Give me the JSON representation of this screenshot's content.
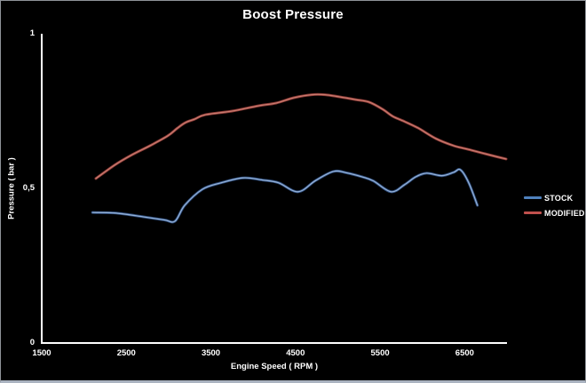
{
  "window": {
    "background": "#000000",
    "frame_border": "#8f9399",
    "bottom_strip": "#aab3c0",
    "text_color": "#ffffff"
  },
  "chart_data": {
    "type": "line",
    "title": "Boost Pressure",
    "xlabel": "Engine Speed ( RPM )",
    "ylabel": "Pressure ( bar )",
    "xlim": [
      1500,
      7000
    ],
    "ylim": [
      0,
      1
    ],
    "grid": false,
    "background": "#000000",
    "axis_color": "#ffffff",
    "legend_position": "right",
    "x_ticks": [
      {
        "value": 1500,
        "label": "1500"
      },
      {
        "value": 2500,
        "label": "2500"
      },
      {
        "value": 3500,
        "label": "3500"
      },
      {
        "value": 4500,
        "label": "4500"
      },
      {
        "value": 5500,
        "label": "5500"
      },
      {
        "value": 6500,
        "label": "6500"
      }
    ],
    "y_ticks": [
      {
        "value": 1,
        "label": "1"
      },
      {
        "value": 0.5,
        "label": "0,5"
      },
      {
        "value": 0,
        "label": "0"
      }
    ],
    "series": [
      {
        "name": "STOCK",
        "color": "#4F81BD",
        "color_outer": "#2e4d7d",
        "color_inner": "#93b0d6",
        "points": [
          [
            2100,
            0.422
          ],
          [
            2380,
            0.42
          ],
          [
            2700,
            0.408
          ],
          [
            2950,
            0.398
          ],
          [
            3075,
            0.394
          ],
          [
            3190,
            0.445
          ],
          [
            3400,
            0.497
          ],
          [
            3620,
            0.518
          ],
          [
            3880,
            0.534
          ],
          [
            4110,
            0.527
          ],
          [
            4300,
            0.518
          ],
          [
            4530,
            0.489
          ],
          [
            4740,
            0.526
          ],
          [
            4950,
            0.555
          ],
          [
            5110,
            0.55
          ],
          [
            5290,
            0.537
          ],
          [
            5420,
            0.524
          ],
          [
            5630,
            0.489
          ],
          [
            5790,
            0.512
          ],
          [
            5920,
            0.537
          ],
          [
            6050,
            0.549
          ],
          [
            6230,
            0.541
          ],
          [
            6370,
            0.552
          ],
          [
            6450,
            0.56
          ],
          [
            6550,
            0.517
          ],
          [
            6650,
            0.445
          ]
        ]
      },
      {
        "name": "MODIFIED",
        "color": "#C0504D",
        "color_outer": "#8c3a36",
        "color_inner": "#c97b6f",
        "points": [
          [
            2140,
            0.532
          ],
          [
            2360,
            0.575
          ],
          [
            2570,
            0.609
          ],
          [
            2780,
            0.638
          ],
          [
            2990,
            0.67
          ],
          [
            3100,
            0.694
          ],
          [
            3200,
            0.713
          ],
          [
            3310,
            0.724
          ],
          [
            3430,
            0.738
          ],
          [
            3750,
            0.75
          ],
          [
            4060,
            0.767
          ],
          [
            4270,
            0.776
          ],
          [
            4480,
            0.793
          ],
          [
            4690,
            0.803
          ],
          [
            4850,
            0.803
          ],
          [
            5020,
            0.796
          ],
          [
            5210,
            0.787
          ],
          [
            5370,
            0.779
          ],
          [
            5530,
            0.756
          ],
          [
            5650,
            0.733
          ],
          [
            5790,
            0.716
          ],
          [
            5950,
            0.695
          ],
          [
            6160,
            0.661
          ],
          [
            6370,
            0.638
          ],
          [
            6530,
            0.627
          ],
          [
            6740,
            0.612
          ],
          [
            6990,
            0.595
          ]
        ]
      }
    ]
  }
}
